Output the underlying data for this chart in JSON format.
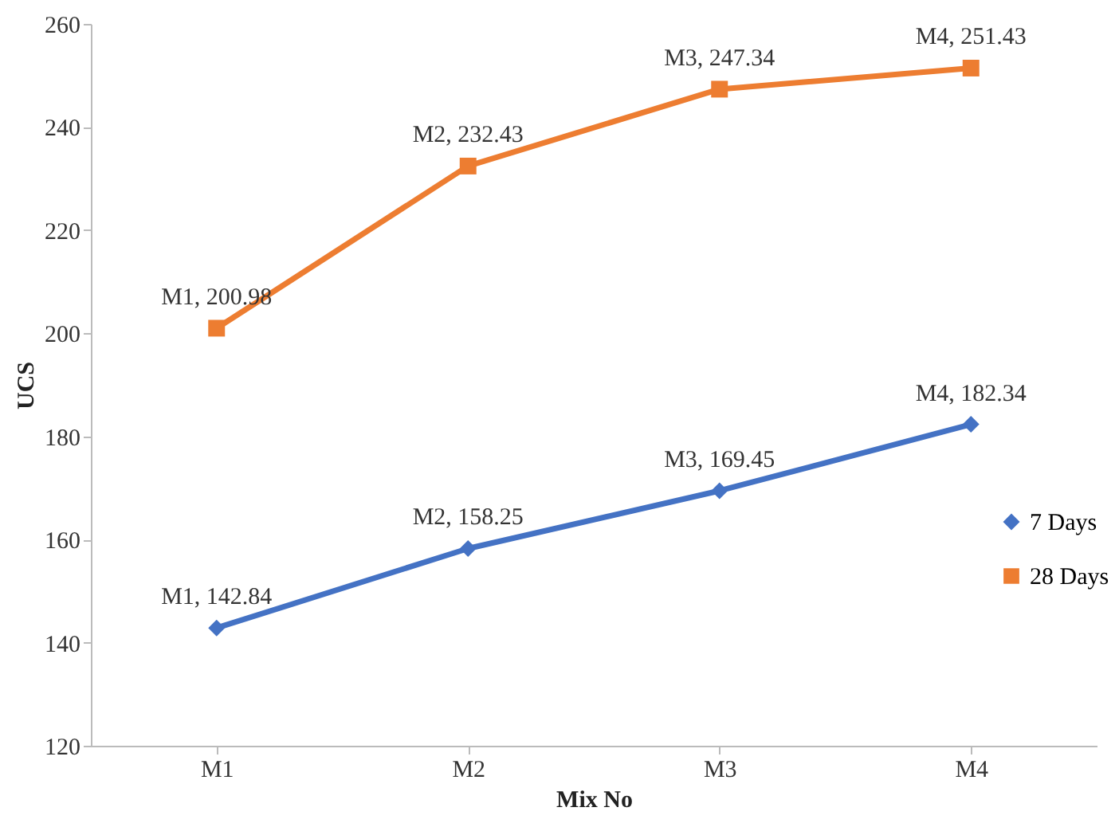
{
  "chart_data": {
    "type": "line",
    "xlabel": "Mix No",
    "ylabel": "UCS",
    "categories": [
      "M1",
      "M2",
      "M3",
      "M4"
    ],
    "series": [
      {
        "name": "7 Days",
        "color": "#4472c4",
        "marker": "diamond",
        "values": [
          142.84,
          158.25,
          169.45,
          182.34
        ],
        "value_labels": [
          "M1, 142.84",
          "M2, 158.25",
          "M3, 169.45",
          "M4, 182.34"
        ]
      },
      {
        "name": "28 Days",
        "color": "#ed7d31",
        "marker": "square",
        "values": [
          200.98,
          232.43,
          247.34,
          251.43
        ],
        "value_labels": [
          "M1, 200.98",
          "M2, 232.43",
          "M3, 247.34",
          "M4, 251.43"
        ]
      }
    ],
    "ylim": [
      120,
      260
    ],
    "yticks": [
      120,
      140,
      160,
      180,
      200,
      220,
      240,
      260
    ],
    "grid": false,
    "legend": "right"
  }
}
